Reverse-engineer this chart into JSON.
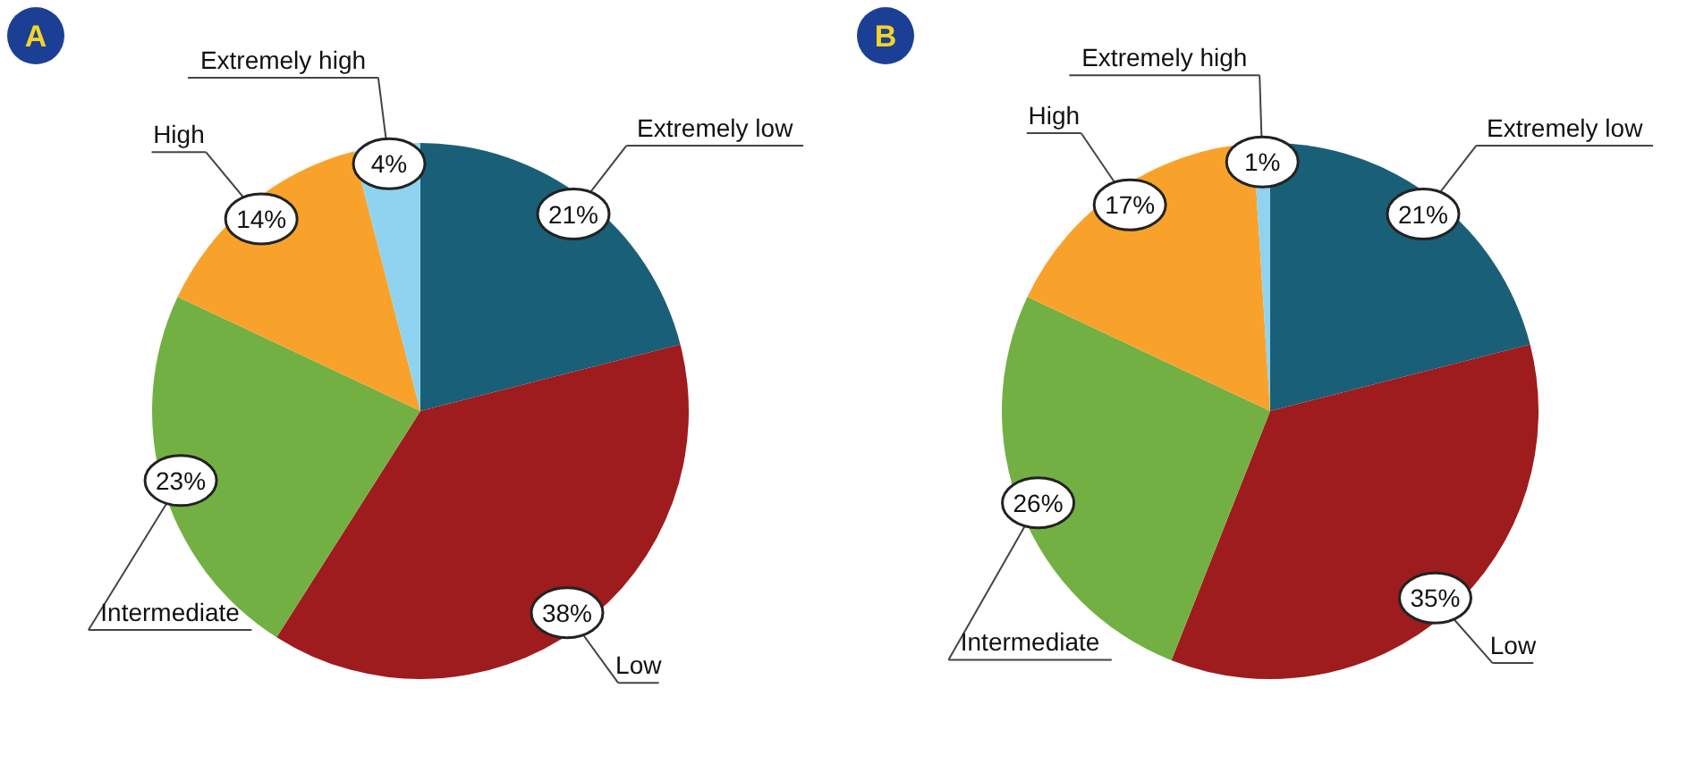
{
  "chart_data": [
    {
      "type": "pie",
      "title": "A",
      "categories": [
        "Extremely low",
        "Low",
        "Intermediate",
        "High",
        "Extremely high"
      ],
      "values": [
        21,
        38,
        23,
        14,
        4
      ],
      "colors": [
        "#1a5f78",
        "#9e1b1e",
        "#72b043",
        "#f9a22b",
        "#8fd3f0"
      ],
      "value_labels": [
        "21%",
        "38%",
        "23%",
        "14%",
        "4%"
      ]
    },
    {
      "type": "pie",
      "title": "B",
      "categories": [
        "Extremely low",
        "Low",
        "Intermediate",
        "High",
        "Extremely high"
      ],
      "values": [
        21,
        35,
        26,
        17,
        1
      ],
      "colors": [
        "#1a5f78",
        "#9e1b1e",
        "#72b043",
        "#f9a22b",
        "#8fd3f0"
      ],
      "value_labels": [
        "21%",
        "35%",
        "26%",
        "17%",
        "1%"
      ]
    }
  ]
}
